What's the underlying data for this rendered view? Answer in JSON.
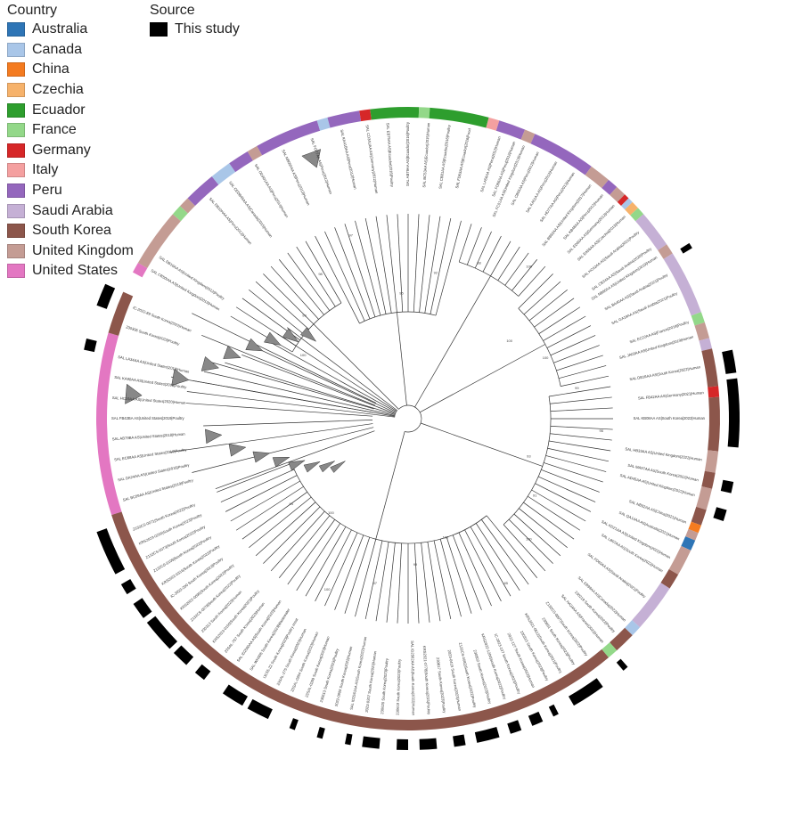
{
  "legend": {
    "country_title": "Country",
    "source_title": "Source",
    "countries": [
      {
        "label": "Australia",
        "color": "#2e75b6"
      },
      {
        "label": "Canada",
        "color": "#a9c6e8"
      },
      {
        "label": "China",
        "color": "#f47b20"
      },
      {
        "label": "Czechia",
        "color": "#f6b26b"
      },
      {
        "label": "Ecuador",
        "color": "#2e9e2e"
      },
      {
        "label": "France",
        "color": "#93d889"
      },
      {
        "label": "Germany",
        "color": "#d62728"
      },
      {
        "label": "Italy",
        "color": "#f4a0a0"
      },
      {
        "label": "Peru",
        "color": "#9467bd"
      },
      {
        "label": "Saudi Arabia",
        "color": "#c5b0d5"
      },
      {
        "label": "South Korea",
        "color": "#8c564b"
      },
      {
        "label": "United Kingdom",
        "color": "#c49c94"
      },
      {
        "label": "United States",
        "color": "#e377c2"
      }
    ],
    "sources": [
      {
        "label": "This study",
        "color": "#000000"
      }
    ]
  },
  "ring_segments": [
    {
      "country": "United States",
      "from": -108,
      "to": -74
    },
    {
      "country": "South Korea",
      "from": -74,
      "to": -66
    },
    {
      "country": "United States",
      "from": -62,
      "to": -60
    },
    {
      "country": "United Kingdom",
      "from": -60,
      "to": -49
    },
    {
      "country": "France",
      "from": -49,
      "to": -47
    },
    {
      "country": "United Kingdom",
      "from": -47,
      "to": -45
    },
    {
      "country": "Peru",
      "from": -45,
      "to": -39
    },
    {
      "country": "Canada",
      "from": -39,
      "to": -35
    },
    {
      "country": "Peru",
      "from": -35,
      "to": -31
    },
    {
      "country": "United Kingdom",
      "from": -31,
      "to": -29
    },
    {
      "country": "Peru",
      "from": -29,
      "to": -17
    },
    {
      "country": "Canada",
      "from": -17,
      "to": -15
    },
    {
      "country": "Peru",
      "from": -15,
      "to": -9
    },
    {
      "country": "Germany",
      "from": -9,
      "to": -7
    },
    {
      "country": "Ecuador",
      "from": -7,
      "to": 2
    },
    {
      "country": "France",
      "from": 2,
      "to": 4
    },
    {
      "country": "Ecuador",
      "from": 4,
      "to": 15
    },
    {
      "country": "Italy",
      "from": 15,
      "to": 17
    },
    {
      "country": "Peru",
      "from": 17,
      "to": 22
    },
    {
      "country": "United Kingdom",
      "from": 22,
      "to": 24
    },
    {
      "country": "Peru",
      "from": 24,
      "to": 36
    },
    {
      "country": "United Kingdom",
      "from": 36,
      "to": 40
    },
    {
      "country": "Peru",
      "from": 40,
      "to": 42
    },
    {
      "country": "United Kingdom",
      "from": 42,
      "to": 44
    },
    {
      "country": "Germany",
      "from": 44,
      "to": 45
    },
    {
      "country": "Canada",
      "from": 45,
      "to": 46
    },
    {
      "country": "Czechia",
      "from": 46,
      "to": 47.5
    },
    {
      "country": "France",
      "from": 47.5,
      "to": 49
    },
    {
      "country": "Saudi Arabia",
      "from": 49,
      "to": 56
    },
    {
      "country": "United Kingdom",
      "from": 56,
      "to": 58
    },
    {
      "country": "Saudi Arabia",
      "from": 58,
      "to": 70
    },
    {
      "country": "France",
      "from": 70,
      "to": 72
    },
    {
      "country": "United Kingdom",
      "from": 72,
      "to": 75
    },
    {
      "country": "Saudi Arabia",
      "from": 75,
      "to": 77
    },
    {
      "country": "South Korea",
      "from": 77,
      "to": 84
    },
    {
      "country": "Germany",
      "from": 84,
      "to": 86
    },
    {
      "country": "South Korea",
      "from": 86,
      "to": 96
    },
    {
      "country": "United Kingdom",
      "from": 96,
      "to": 100
    },
    {
      "country": "South Korea",
      "from": 100,
      "to": 103
    },
    {
      "country": "United Kingdom",
      "from": 103,
      "to": 107
    },
    {
      "country": "South Korea",
      "from": 107,
      "to": 110
    },
    {
      "country": "China",
      "from": 110,
      "to": 111.5
    },
    {
      "country": "United Kingdom",
      "from": 111.5,
      "to": 113
    },
    {
      "country": "Australia",
      "from": 113,
      "to": 115
    },
    {
      "country": "United Kingdom",
      "from": 115,
      "to": 120
    },
    {
      "country": "South Korea",
      "from": 120,
      "to": 123
    },
    {
      "country": "Saudi Arabia",
      "from": 123,
      "to": 132
    },
    {
      "country": "Canada",
      "from": 132,
      "to": 134
    },
    {
      "country": "South Korea",
      "from": 134,
      "to": 138
    },
    {
      "country": "France",
      "from": 138,
      "to": 140
    },
    {
      "country": "South Korea",
      "from": 140,
      "to": 252
    }
  ],
  "study_segments": [
    {
      "from": -70,
      "to": -66
    },
    {
      "from": -78,
      "to": -76
    },
    {
      "from": 58,
      "to": 59
    },
    {
      "from": 78,
      "to": 82
    },
    {
      "from": 83,
      "to": 95
    },
    {
      "from": 101,
      "to": 103
    },
    {
      "from": 106,
      "to": 108
    },
    {
      "from": 138.5,
      "to": 139.5
    },
    {
      "from": 144,
      "to": 150
    },
    {
      "from": 153,
      "to": 154
    },
    {
      "from": 156,
      "to": 158
    },
    {
      "from": 160,
      "to": 162
    },
    {
      "from": 164,
      "to": 168
    },
    {
      "from": 170,
      "to": 172
    },
    {
      "from": 175,
      "to": 178
    },
    {
      "from": 180,
      "to": 182
    },
    {
      "from": 185,
      "to": 188
    },
    {
      "from": 190,
      "to": 191
    },
    {
      "from": 195,
      "to": 196
    },
    {
      "from": 200,
      "to": 201
    },
    {
      "from": 205,
      "to": 209
    },
    {
      "from": 210,
      "to": 214
    },
    {
      "from": 218,
      "to": 220
    },
    {
      "from": 222,
      "to": 225
    },
    {
      "from": 226,
      "to": 232
    },
    {
      "from": 233,
      "to": 236
    },
    {
      "from": 238,
      "to": 240
    },
    {
      "from": 242,
      "to": 250
    }
  ],
  "tips": [
    {
      "text": "SAL CB50IAA AS|United Kingdom|2013|Human",
      "a": -60
    },
    {
      "text": "SAL DB10AA AS|United Kingdom|2012|Poultry",
      "a": -57
    },
    {
      "text": "SAL DB10HAA AS|Peru|2012|Human",
      "a": -42
    },
    {
      "text": "SAL CEDB45AA AS|Canada|2015|Human",
      "a": -37
    },
    {
      "text": "SAL ODA01AA AS|Peru|2014|Human",
      "a": -31
    },
    {
      "text": "SAL NB05FAA AS|Peru|2013|Human",
      "a": -25
    },
    {
      "text": "SAL FO77AA AS|Peru|2012|Human",
      "a": -19
    },
    {
      "text": "SAL KA41BAA AS|Peru|2012|Human",
      "a": -13
    },
    {
      "text": "SAL CD34UAA AS|Germany|2012|Human",
      "a": -8
    },
    {
      "text": "SAL EB75AA AS|Ecuador|2016|Poultry",
      "a": -4
    },
    {
      "text": "SAL AB79AA AS|Ecuador|2016|Poultry",
      "a": 0
    },
    {
      "text": "SAL BC53AA AS|Ecuador|2015|Human",
      "a": 4
    },
    {
      "text": "SAL CB81AA AS|Ecuador|2016|Poultry",
      "a": 8
    },
    {
      "text": "SAL FD63AA AS|Ecuador|2016|Food",
      "a": 12
    },
    {
      "text": "SAL LA56AA AS|Peru|2012|Human",
      "a": 18
    },
    {
      "text": "SAL FD86AA AS|Peru|2012|Human",
      "a": 21
    },
    {
      "text": "SAL FC01AA AS|United Kingdom|2013|Human",
      "a": 23
    },
    {
      "text": "SAL CB55AA AS|Peru|2012|Human",
      "a": 26
    },
    {
      "text": "SAL KA51AA AS|Peru|2012|Human",
      "a": 30
    },
    {
      "text": "SAL HD77AA AS|Peru|2013|Human",
      "a": 34
    },
    {
      "text": "SAL BB92AA AS|United Kingdom|2017|Human",
      "a": 38
    },
    {
      "text": "SAL KB48AA AS|Peru|2012|Human",
      "a": 41
    },
    {
      "text": "SAL ED60AA AS|Germany|2012|Human",
      "a": 44
    },
    {
      "text": "SAL EA56AA AS|Czechia|2013|Human",
      "a": 47
    },
    {
      "text": "SAL HC62AA AS|Saudi Arabia|2021|Poultry",
      "a": 51
    },
    {
      "text": "SAL CB34AA AS|Saudi Arabia|2020|Poultry",
      "a": 55
    },
    {
      "text": "SAL NB90AA AS|United Kingdom|2019|Human",
      "a": 57
    },
    {
      "text": "SAL BA40AA AS|Saudi Arabia|2021|Poultry",
      "a": 61
    },
    {
      "text": "SAL GA18AA AS|Saudi Arabia|2021|Poultry",
      "a": 65
    },
    {
      "text": "SAL EC22AA AS|France|2019|Poultry",
      "a": 71
    },
    {
      "text": "SAL JA03AA AS|United Kingdom|2019|Human",
      "a": 74
    },
    {
      "text": "SAL DB16AA AS|South Korea|2022|Human",
      "a": 80
    },
    {
      "text": "SAL FB42AA AS|Germany|2021|Human",
      "a": 85
    },
    {
      "text": "SAL KB08AA AS|South Korea|2022|Human",
      "a": 90
    },
    {
      "text": "SAL HB33AA AS|United Kingdom|2022|Human",
      "a": 98
    },
    {
      "text": "SAL MA97AA AS|South Korea|2022|Human",
      "a": 102
    },
    {
      "text": "SAL AD45AA AS|United Kingdom|2022|Human",
      "a": 105
    },
    {
      "text": "SAL NB02AA AS|China|2021|Human",
      "a": 110.5
    },
    {
      "text": "SAL QA14AA AS|Australia|2021|Human",
      "a": 114
    },
    {
      "text": "SAL KD21AA AS|United Kingdom|2022|Human",
      "a": 118
    },
    {
      "text": "SAL LB07AA AS|South Korea|2022|Human",
      "a": 121
    },
    {
      "text": "SAL FD60AA AS|Saudi Arabia|2021|Poultry",
      "a": 127
    },
    {
      "text": "SAL EB99AA AS|Canada|2022|Human",
      "a": 133
    },
    {
      "text": "230219 South Korea|2022|Poultry",
      "a": 136
    },
    {
      "text": "SAL HA24AA AS|France|2022|Human",
      "a": 139
    },
    {
      "text": "Z132CS-0097|South Korea|2022|Poultry",
      "a": 143
    },
    {
      "text": "230601 South Korea|2023|Poultry",
      "a": 146
    },
    {
      "text": "KRS2021-0512|South Korea|2021|Poultry",
      "a": 149
    },
    {
      "text": "230315 South Korea|2023|Poultry",
      "a": 152
    },
    {
      "text": "2022-127 South Korea|2022|Human",
      "a": 155
    },
    {
      "text": "IC-2023-137 South Korea|2023|Poultry",
      "a": 158
    },
    {
      "text": "KRS2022-1204|South Korea|2022|Poultry",
      "a": 161
    },
    {
      "text": "230802 South Korea|2023|Poultry",
      "a": 164
    },
    {
      "text": "Z132CS-0082|South Korea|2022|Poultry",
      "a": 167
    },
    {
      "text": "2023-0415 South Korea|2023|Human",
      "a": 170
    },
    {
      "text": "230617 South Korea|2023|Poultry",
      "a": 173
    },
    {
      "text": "KRS2021-0778|South Korea|2021|Poultry",
      "a": 176
    },
    {
      "text": "SAL ID2562AA AS|South Korea|2022|Human",
      "a": 179
    },
    {
      "text": "230619 South Korea|2023|Poultry",
      "a": 182
    },
    {
      "text": "230620 South Korea|2023|Poultry",
      "a": 185
    },
    {
      "text": "2023-0207 South Korea|2023|Human",
      "a": 188
    },
    {
      "text": "SAL ID2561AA AS|South Korea|2022|Human",
      "a": 191
    },
    {
      "text": "2022-0909 South Korea|2022|Human",
      "a": 194
    },
    {
      "text": "230613 South Korea|2023|Poultry",
      "a": 197
    },
    {
      "text": "23SAL-0269 South Korea|2023|Human",
      "a": 200
    },
    {
      "text": "23SAL-0264 South Korea|2023|Human",
      "a": 203
    },
    {
      "text": "23SAL-275 South Korea|2023|Human",
      "a": 206
    },
    {
      "text": "IJC55-22 South Korea|2023|Poultry meat",
      "a": 209
    },
    {
      "text": "SAL-WH005 South Korea|2023|Wastewater",
      "a": 212
    },
    {
      "text": "SAL ID2560AA AS|South Korea|2022|Human",
      "a": 215
    },
    {
      "text": "23SAL-757 South Korea|2023|Human",
      "a": 218
    },
    {
      "text": "KRS2023-0150|South Korea|2023|Poultry",
      "a": 221
    },
    {
      "text": "230313 South Korea|2023|Human",
      "a": 224
    },
    {
      "text": "Z132CS-0078|South Korea|2022|Poultry",
      "a": 227
    },
    {
      "text": "KRS2022-0095|South Korea|2022|Poultry",
      "a": 230
    },
    {
      "text": "IC-2023-200 South Korea|2023|Poultry",
      "a": 233
    },
    {
      "text": "KRS2022-0316|South Korea|2022|Poultry",
      "a": 236
    },
    {
      "text": "Z132CS-0105|South Korea|2022|Poultry",
      "a": 239
    },
    {
      "text": "Z132CS-0073|South Korea|2022|Poultry",
      "a": 242
    },
    {
      "text": "KRS2023-0200|South Korea|2023|Poultry",
      "a": 245
    },
    {
      "text": "Z132CS-0071|South Korea|2022|Poultry",
      "a": 248
    },
    {
      "text": "SAL BC09AA AS|United States|2019|Poultry",
      "a": -106
    },
    {
      "text": "SAL DA24AA AS|United States|2018|Poultry",
      "a": -102
    },
    {
      "text": "SAL EC68AA AS|United States|2019|Poultry",
      "a": -98
    },
    {
      "text": "SAL AB79BA AS|United States|2018|Human",
      "a": -94
    },
    {
      "text": "SAL FB42BA AS|United States|2019|Poultry",
      "a": -90
    },
    {
      "text": "SAL HC19AA AS|United States|2020|Human",
      "a": -86
    },
    {
      "text": "SAL KA90AA AS|United States|2018|Poultry",
      "a": -82
    },
    {
      "text": "SAL LA34AA AS|United States|2019|Human",
      "a": -78
    },
    {
      "text": "230306 South Korea|2023|Poultry",
      "a": -72
    },
    {
      "text": "IC-2022-89 South Korea|2022|Human",
      "a": -68
    }
  ],
  "bootstrap_labels": [
    "100",
    "99",
    "98",
    "97",
    "95",
    "92",
    "88",
    "100",
    "100",
    "100",
    "99",
    "96",
    "93",
    "91",
    "100",
    "85",
    "100",
    "99",
    "87",
    "100",
    "100",
    "94"
  ]
}
